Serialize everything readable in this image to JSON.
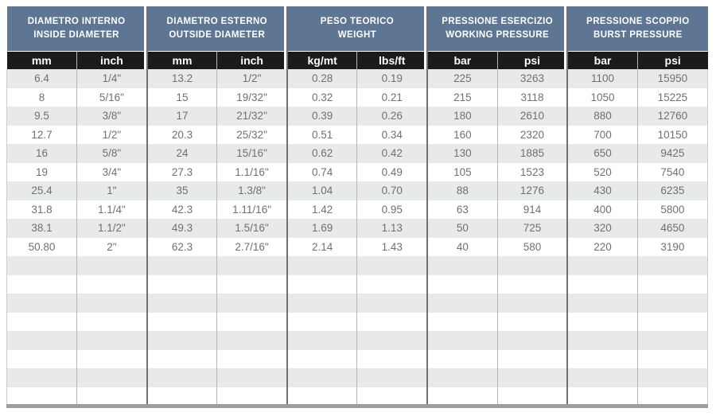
{
  "table": {
    "groups": [
      {
        "title_it": "DIAMETRO INTERNO",
        "title_en": "INSIDE DIAMETER",
        "units": [
          "mm",
          "inch"
        ]
      },
      {
        "title_it": "DIAMETRO ESTERNO",
        "title_en": "OUTSIDE DIAMETER",
        "units": [
          "mm",
          "inch"
        ]
      },
      {
        "title_it": "PESO TEORICO",
        "title_en": "WEIGHT",
        "units": [
          "kg/mt",
          "lbs/ft"
        ]
      },
      {
        "title_it": "PRESSIONE ESERCIZIO",
        "title_en": "WORKING PRESSURE",
        "units": [
          "bar",
          "psi"
        ]
      },
      {
        "title_it": "PRESSIONE SCOPPIO",
        "title_en": "BURST PRESSURE",
        "units": [
          "bar",
          "psi"
        ]
      }
    ],
    "rows": [
      [
        "6.4",
        "1/4\"",
        "13.2",
        "1/2\"",
        "0.28",
        "0.19",
        "225",
        "3263",
        "1100",
        "15950"
      ],
      [
        "8",
        "5/16\"",
        "15",
        "19/32\"",
        "0.32",
        "0.21",
        "215",
        "3118",
        "1050",
        "15225"
      ],
      [
        "9.5",
        "3/8\"",
        "17",
        "21/32\"",
        "0.39",
        "0.26",
        "180",
        "2610",
        "880",
        "12760"
      ],
      [
        "12.7",
        "1/2\"",
        "20.3",
        "25/32\"",
        "0.51",
        "0.34",
        "160",
        "2320",
        "700",
        "10150"
      ],
      [
        "16",
        "5/8\"",
        "24",
        "15/16\"",
        "0.62",
        "0.42",
        "130",
        "1885",
        "650",
        "9425"
      ],
      [
        "19",
        "3/4\"",
        "27.3",
        "1.1/16\"",
        "0.74",
        "0.49",
        "105",
        "1523",
        "520",
        "7540"
      ],
      [
        "25.4",
        "1\"",
        "35",
        "1.3/8\"",
        "1.04",
        "0.70",
        "88",
        "1276",
        "430",
        "6235"
      ],
      [
        "31.8",
        "1.1/4\"",
        "42.3",
        "1.11/16\"",
        "1.42",
        "0.95",
        "63",
        "914",
        "400",
        "5800"
      ],
      [
        "38.1",
        "1.1/2\"",
        "49.3",
        "1.5/16\"",
        "1.69",
        "1.13",
        "50",
        "725",
        "320",
        "4650"
      ],
      [
        "50.80",
        "2\"",
        "62.3",
        "2.7/16\"",
        "2.14",
        "1.43",
        "40",
        "580",
        "220",
        "3190"
      ]
    ],
    "empty_row_count": 8,
    "colors": {
      "group_header_bg": "#5e7694",
      "unit_header_bg": "#1b1b1d",
      "stripe_bg": "#e8e9eb",
      "data_text": "#6f7072",
      "divider_dark": "#6f7174",
      "divider_light": "#b3b5b8",
      "bottom_bar": "#9b9da0"
    }
  }
}
